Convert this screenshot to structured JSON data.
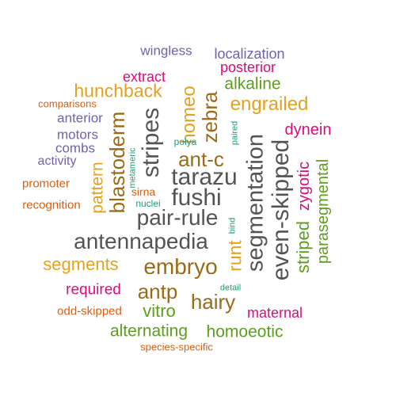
{
  "palette": {
    "purple": "#6e63ac",
    "magenta": "#dc0b7c",
    "gold": "#e5a11d",
    "green": "#5d9e1b",
    "orange": "#d85f11",
    "brown": "#9a6a16",
    "gray": "#545454",
    "teal": "#1d9c7b"
  },
  "words": [
    {
      "text": "wingless",
      "color": "purple"
    },
    {
      "text": "localization",
      "color": "purple"
    },
    {
      "text": "posterior",
      "color": "magenta"
    },
    {
      "text": "extract",
      "color": "magenta"
    },
    {
      "text": "alkaline",
      "color": "green"
    },
    {
      "text": "hunchback",
      "color": "gold"
    },
    {
      "text": "engrailed",
      "color": "gold"
    },
    {
      "text": "comparisons",
      "color": "orange"
    },
    {
      "text": "anterior",
      "color": "purple"
    },
    {
      "text": "motors",
      "color": "purple"
    },
    {
      "text": "combs",
      "color": "purple"
    },
    {
      "text": "activity",
      "color": "purple"
    },
    {
      "text": "promoter",
      "color": "orange"
    },
    {
      "text": "recognition",
      "color": "orange"
    },
    {
      "text": "pattern",
      "color": "gold"
    },
    {
      "text": "blastoderm",
      "color": "brown"
    },
    {
      "text": "metameric",
      "color": "teal"
    },
    {
      "text": "stripes",
      "color": "gray"
    },
    {
      "text": "homeo",
      "color": "gold"
    },
    {
      "text": "zebra",
      "color": "brown"
    },
    {
      "text": "polya",
      "color": "teal"
    },
    {
      "text": "paired",
      "color": "teal"
    },
    {
      "text": "segmentation",
      "color": "gray"
    },
    {
      "text": "even-skipped",
      "color": "gray"
    },
    {
      "text": "dynein",
      "color": "magenta"
    },
    {
      "text": "zygotic",
      "color": "magenta"
    },
    {
      "text": "parasegmental",
      "color": "green"
    },
    {
      "text": "striped",
      "color": "green"
    },
    {
      "text": "ant-c",
      "color": "brown"
    },
    {
      "text": "tarazu",
      "color": "gray"
    },
    {
      "text": "fushi",
      "color": "gray"
    },
    {
      "text": "sirna",
      "color": "orange"
    },
    {
      "text": "nuclei",
      "color": "teal"
    },
    {
      "text": "pair-rule",
      "color": "gray"
    },
    {
      "text": "bind",
      "color": "teal"
    },
    {
      "text": "antennapedia",
      "color": "gray"
    },
    {
      "text": "runt",
      "color": "gold"
    },
    {
      "text": "segments",
      "color": "gold"
    },
    {
      "text": "embryo",
      "color": "brown"
    },
    {
      "text": "required",
      "color": "magenta"
    },
    {
      "text": "antp",
      "color": "brown"
    },
    {
      "text": "detail",
      "color": "teal"
    },
    {
      "text": "hairy",
      "color": "brown"
    },
    {
      "text": "odd-skipped",
      "color": "orange"
    },
    {
      "text": "vitro",
      "color": "green"
    },
    {
      "text": "maternal",
      "color": "magenta"
    },
    {
      "text": "alternating",
      "color": "green"
    },
    {
      "text": "homoeotic",
      "color": "green"
    },
    {
      "text": "species-specific",
      "color": "orange"
    }
  ]
}
